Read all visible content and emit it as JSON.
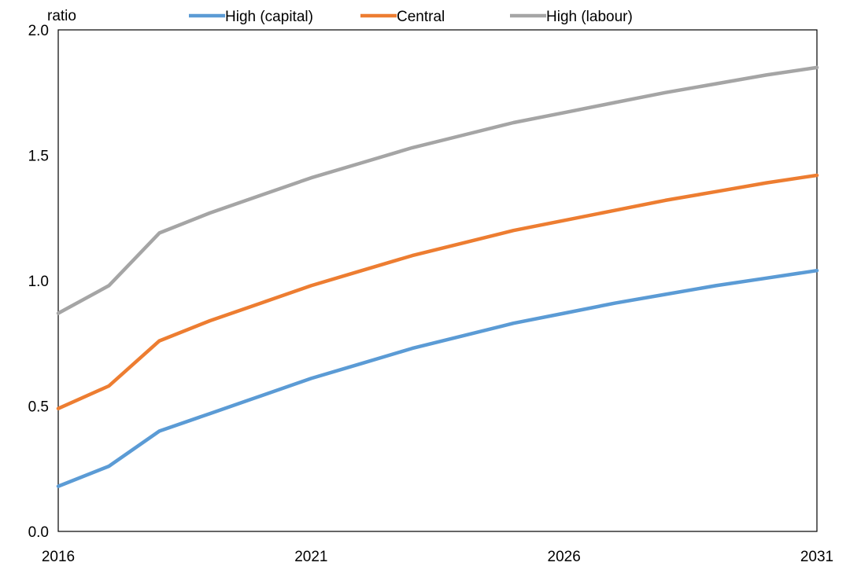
{
  "chart_data": {
    "type": "line",
    "ylabel": "ratio",
    "xlim": [
      2016,
      2031
    ],
    "ylim": [
      0,
      2
    ],
    "x_ticks": [
      "2016",
      "2021",
      "2026",
      "2031"
    ],
    "y_ticks": [
      "0.0",
      "0.5",
      "1.0",
      "1.5",
      "2.0"
    ],
    "grid": false,
    "legend_position": "top",
    "x": [
      2016,
      2017,
      2018,
      2019,
      2020,
      2021,
      2022,
      2023,
      2024,
      2025,
      2026,
      2027,
      2028,
      2029,
      2030,
      2031
    ],
    "series": [
      {
        "name": "High (capital)",
        "color": "#5b9bd5",
        "values": [
          0.18,
          0.26,
          0.4,
          0.47,
          0.54,
          0.61,
          0.67,
          0.73,
          0.78,
          0.83,
          0.87,
          0.91,
          0.945,
          0.98,
          1.01,
          1.04
        ]
      },
      {
        "name": "Central",
        "color": "#ed7d31",
        "values": [
          0.49,
          0.58,
          0.76,
          0.84,
          0.91,
          0.98,
          1.04,
          1.1,
          1.15,
          1.2,
          1.24,
          1.28,
          1.32,
          1.355,
          1.39,
          1.42
        ]
      },
      {
        "name": "High (labour)",
        "color": "#a5a5a5",
        "values": [
          0.87,
          0.98,
          1.19,
          1.27,
          1.34,
          1.41,
          1.47,
          1.53,
          1.58,
          1.63,
          1.67,
          1.71,
          1.75,
          1.785,
          1.82,
          1.85
        ]
      }
    ]
  }
}
